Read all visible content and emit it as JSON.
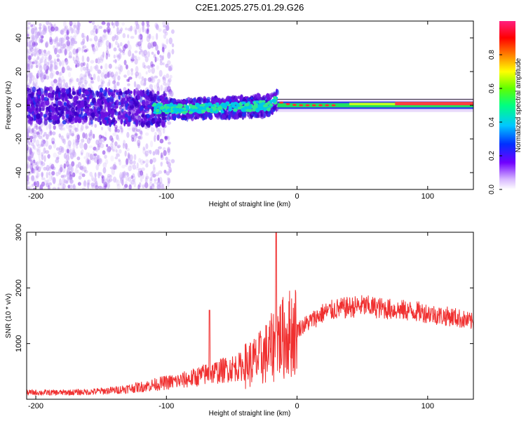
{
  "title": "C2E1.2025.275.01.29.G26",
  "colors": {
    "snr_line": "#f03030",
    "axes": "#000000",
    "spectrum_core": "#ff4040"
  },
  "chart_data": [
    {
      "type": "heatmap",
      "xlabel": "Height of straight line (km)",
      "ylabel": "Frequency (Hz)",
      "xlim": [
        -207,
        135
      ],
      "ylim": [
        -50,
        50
      ],
      "xticks": [
        -200,
        -100,
        0,
        100
      ],
      "yticks": [
        -40,
        -20,
        0,
        20,
        40
      ],
      "colorbar": {
        "label": "Normalized spectral amplitude",
        "range": [
          0,
          1
        ],
        "ticks": [
          0.0,
          0.2,
          0.4,
          0.6,
          0.8
        ],
        "colormap": "rainbow"
      },
      "ridge": [
        {
          "x": -200,
          "y": 0
        },
        {
          "x": -100,
          "y": -2
        },
        {
          "x": -80,
          "y": -2
        },
        {
          "x": -40,
          "y": -1
        },
        {
          "x": -20,
          "y": 0
        },
        {
          "x": -17,
          "y": 3
        },
        {
          "x": -10,
          "y": 1
        },
        {
          "x": 0,
          "y": 0
        },
        {
          "x": 50,
          "y": 0
        },
        {
          "x": 80,
          "y": 1
        },
        {
          "x": 104,
          "y": 1
        },
        {
          "x": 106,
          "y": 0
        },
        {
          "x": 135,
          "y": 1
        }
      ]
    },
    {
      "type": "line",
      "xlabel": "Height of straight line (km)",
      "ylabel": "SNR (10 * v/v)",
      "xlim": [
        -207,
        135
      ],
      "ylim": [
        0,
        3000
      ],
      "xticks": [
        -200,
        -100,
        0,
        100
      ],
      "yticks": [
        1000,
        2000,
        3000
      ],
      "series": [
        {
          "x": [
            -207,
            -180,
            -160,
            -140,
            -120,
            -100,
            -90,
            -80,
            -70,
            -60,
            -50,
            -40,
            -30,
            -25,
            -20,
            -17,
            -16,
            -15,
            -10,
            -5,
            0,
            10,
            20,
            30,
            40,
            50,
            60,
            70,
            80,
            90,
            100,
            110,
            120,
            135
          ],
          "y": [
            120,
            120,
            130,
            160,
            220,
            300,
            330,
            380,
            450,
            500,
            560,
            600,
            700,
            800,
            900,
            1000,
            3000,
            1100,
            1100,
            1200,
            1250,
            1400,
            1550,
            1620,
            1650,
            1680,
            1650,
            1620,
            1600,
            1580,
            1550,
            1500,
            1480,
            1380
          ]
        }
      ],
      "spikes": [
        {
          "x": -67,
          "y": 1600
        },
        {
          "x": -16,
          "y": 3000
        }
      ]
    }
  ]
}
